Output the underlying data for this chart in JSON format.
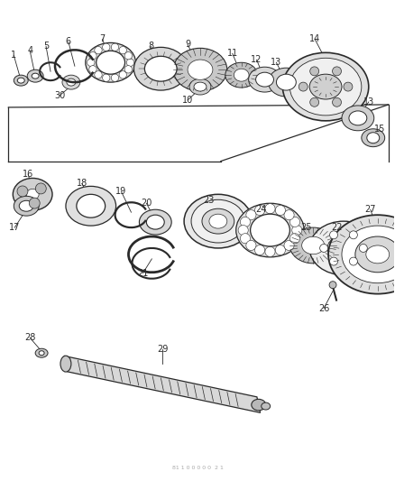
{
  "bg_color": "#ffffff",
  "line_color": "#2a2a2a",
  "fig_w": 4.38,
  "fig_h": 5.33,
  "dpi": 100,
  "watermark": "81 1 0 0 0 0 0  2 1"
}
